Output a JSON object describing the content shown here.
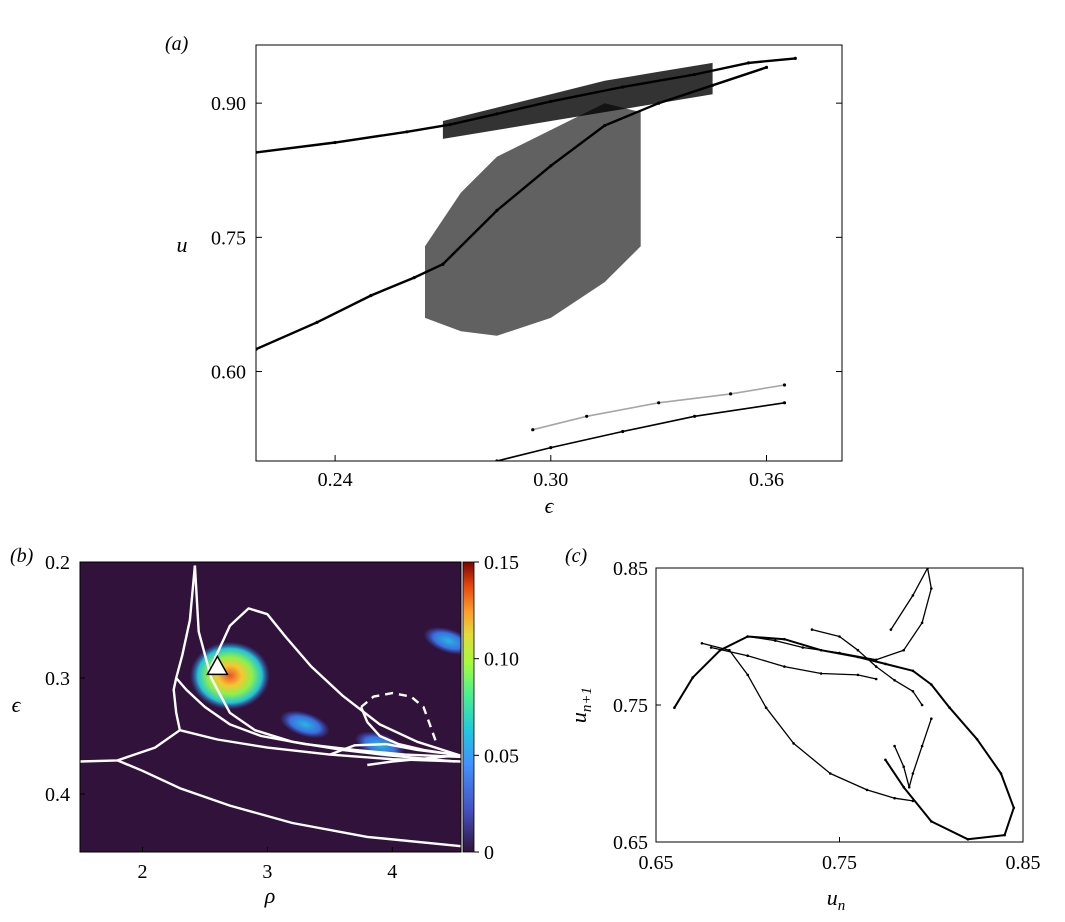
{
  "chart_data": [
    {
      "panel_label": "(a)",
      "type": "scatter",
      "xlabel": "ϵ",
      "ylabel": "u",
      "xlim": [
        0.218,
        0.381
      ],
      "ylim": [
        0.5,
        0.965
      ],
      "xticks": [
        0.24,
        0.3,
        0.36
      ],
      "xtick_labels": [
        "0.24",
        "0.30",
        "0.36"
      ],
      "yticks": [
        0.6,
        0.75,
        0.9
      ],
      "ytick_labels": [
        "0.60",
        "0.75",
        "0.90"
      ],
      "grid": false,
      "colors": {
        "points": "#000000",
        "background": "#ffffff"
      },
      "series": [
        {
          "x": [
            0.218,
            0.24,
            0.26,
            0.272,
            0.285,
            0.3,
            0.32,
            0.34,
            0.355,
            0.368
          ],
          "y": [
            0.845,
            0.856,
            0.868,
            0.876,
            0.888,
            0.902,
            0.918,
            0.932,
            0.945,
            0.95
          ]
        },
        {
          "x": [
            0.218,
            0.235,
            0.25,
            0.262,
            0.27
          ],
          "y": [
            0.625,
            0.655,
            0.685,
            0.705,
            0.72
          ]
        },
        {
          "x": [
            0.27,
            0.285,
            0.3,
            0.315,
            0.33,
            0.345,
            0.36
          ],
          "y": [
            0.72,
            0.78,
            0.83,
            0.875,
            0.9,
            0.92,
            0.94
          ]
        },
        {
          "x": [
            0.285,
            0.3,
            0.32,
            0.34,
            0.365
          ],
          "y": [
            0.5,
            0.515,
            0.533,
            0.55,
            0.565
          ]
        },
        {
          "x": [
            0.295,
            0.31,
            0.33,
            0.35,
            0.365
          ],
          "y": [
            0.535,
            0.55,
            0.565,
            0.575,
            0.585
          ]
        }
      ],
      "bands": [
        {
          "x": [
            0.265,
            0.275,
            0.285,
            0.3,
            0.315,
            0.325
          ],
          "lower": [
            0.66,
            0.645,
            0.64,
            0.66,
            0.7,
            0.74
          ],
          "upper": [
            0.74,
            0.8,
            0.84,
            0.87,
            0.9,
            0.89
          ]
        },
        {
          "x": [
            0.27,
            0.285,
            0.3,
            0.315,
            0.33,
            0.345
          ],
          "lower": [
            0.86,
            0.87,
            0.88,
            0.89,
            0.9,
            0.91
          ],
          "upper": [
            0.88,
            0.895,
            0.91,
            0.925,
            0.935,
            0.945
          ]
        }
      ]
    },
    {
      "panel_label": "(b)",
      "type": "heatmap",
      "xlabel": "ρ",
      "ylabel": "ϵ",
      "xlim": [
        1.5,
        4.55
      ],
      "ylim": [
        0.45,
        0.2
      ],
      "xticks": [
        2,
        3,
        4
      ],
      "xtick_labels": [
        "2",
        "3",
        "4"
      ],
      "yticks": [
        0.2,
        0.3,
        0.4
      ],
      "ytick_labels": [
        "0.2",
        "0.3",
        "0.4"
      ],
      "colorbar": {
        "min": 0,
        "max": 0.15,
        "ticks": [
          0,
          0.05,
          0.1,
          0.15
        ],
        "tick_labels": [
          "0",
          "0.05",
          "0.10",
          "0.15"
        ],
        "colormap": "turbo"
      },
      "colors": {
        "background": "#30123b",
        "curves": "#ffffff"
      },
      "blobs": [
        {
          "x": 2.7,
          "y": 0.298,
          "value": 0.13
        },
        {
          "x": 3.3,
          "y": 0.34,
          "value": 0.06
        },
        {
          "x": 3.9,
          "y": 0.358,
          "value": 0.05
        },
        {
          "x": 4.45,
          "y": 0.268,
          "value": 0.04
        }
      ],
      "marker": {
        "shape": "triangle",
        "x": 2.6,
        "y": 0.29
      },
      "curves": [
        {
          "style": "solid",
          "x": [
            2.42,
            2.45,
            2.55,
            2.7,
            2.9,
            3.2,
            3.6,
            4.0,
            4.3,
            4.5
          ],
          "y": [
            0.203,
            0.26,
            0.3,
            0.33,
            0.345,
            0.355,
            0.362,
            0.367,
            0.37,
            0.372
          ]
        },
        {
          "style": "solid",
          "x": [
            2.42,
            2.38,
            2.32,
            2.27,
            2.25,
            2.27,
            2.3
          ],
          "y": [
            0.203,
            0.25,
            0.28,
            0.3,
            0.31,
            0.33,
            0.345
          ]
        },
        {
          "style": "solid",
          "x": [
            2.27,
            2.35,
            2.5,
            2.7,
            2.95,
            3.3,
            3.7,
            4.1,
            4.55
          ],
          "y": [
            0.3,
            0.31,
            0.325,
            0.34,
            0.35,
            0.357,
            0.362,
            0.366,
            0.368
          ]
        },
        {
          "style": "solid",
          "x": [
            2.55,
            2.7,
            2.85,
            3.0,
            3.15,
            3.35,
            3.6,
            3.9,
            4.2,
            4.55
          ],
          "y": [
            0.29,
            0.255,
            0.24,
            0.245,
            0.265,
            0.29,
            0.315,
            0.34,
            0.355,
            0.367
          ]
        },
        {
          "style": "solid",
          "x": [
            2.3,
            2.6,
            3.0,
            3.5,
            4.0,
            4.55
          ],
          "y": [
            0.345,
            0.353,
            0.36,
            0.366,
            0.37,
            0.372
          ]
        },
        {
          "style": "solid",
          "x": [
            1.5,
            1.8,
            2.1,
            2.3
          ],
          "y": [
            0.372,
            0.371,
            0.36,
            0.345
          ]
        },
        {
          "style": "solid",
          "x": [
            1.8,
            2.0,
            2.3,
            2.7,
            3.2,
            3.8,
            4.55
          ],
          "y": [
            0.371,
            0.38,
            0.395,
            0.41,
            0.425,
            0.437,
            0.445
          ]
        },
        {
          "style": "dashed",
          "x": [
            3.75,
            3.85,
            4.0,
            4.15,
            4.25,
            4.3,
            4.35
          ],
          "y": [
            0.325,
            0.316,
            0.313,
            0.316,
            0.325,
            0.34,
            0.355
          ]
        },
        {
          "style": "solid",
          "x": [
            3.75,
            3.8,
            3.9,
            4.05,
            4.25,
            4.55
          ],
          "y": [
            0.325,
            0.338,
            0.35,
            0.357,
            0.362,
            0.367
          ]
        },
        {
          "style": "solid",
          "x": [
            3.5,
            3.7,
            3.95,
            4.2,
            4.5
          ],
          "y": [
            0.366,
            0.358,
            0.357,
            0.362,
            0.366
          ]
        },
        {
          "style": "solid",
          "x": [
            3.8,
            4.0,
            4.2,
            4.5
          ],
          "y": [
            0.375,
            0.372,
            0.37,
            0.367
          ]
        }
      ]
    },
    {
      "panel_label": "(c)",
      "type": "scatter",
      "xlabel": "u_n",
      "xlabel_main": "u",
      "xlabel_sub": "n",
      "ylabel": "u_{n+1}",
      "ylabel_main": "u",
      "ylabel_sub": "n+1",
      "xlim": [
        0.65,
        0.85
      ],
      "ylim": [
        0.65,
        0.85
      ],
      "xticks": [
        0.65,
        0.75,
        0.85
      ],
      "xtick_labels": [
        "0.65",
        "0.75",
        "0.85"
      ],
      "yticks": [
        0.65,
        0.75,
        0.85
      ],
      "ytick_labels": [
        "0.65",
        "0.75",
        "0.85"
      ],
      "grid": false,
      "colors": {
        "points": "#000000"
      },
      "series": [
        {
          "x": [
            0.66,
            0.67,
            0.685,
            0.7,
            0.72,
            0.74,
            0.76,
            0.775,
            0.79,
            0.8,
            0.81,
            0.825,
            0.838,
            0.845,
            0.84,
            0.82,
            0.8,
            0.785,
            0.775
          ],
          "y": [
            0.748,
            0.77,
            0.79,
            0.8,
            0.798,
            0.79,
            0.785,
            0.78,
            0.775,
            0.765,
            0.748,
            0.725,
            0.7,
            0.675,
            0.655,
            0.652,
            0.665,
            0.69,
            0.71
          ]
        },
        {
          "x": [
            0.675,
            0.69,
            0.7,
            0.71,
            0.725,
            0.745,
            0.765,
            0.78,
            0.79
          ],
          "y": [
            0.795,
            0.79,
            0.772,
            0.748,
            0.722,
            0.7,
            0.688,
            0.682,
            0.68
          ]
        },
        {
          "x": [
            0.7,
            0.715,
            0.73,
            0.75,
            0.77,
            0.785,
            0.795,
            0.8,
            0.798,
            0.79,
            0.778
          ],
          "y": [
            0.8,
            0.797,
            0.792,
            0.788,
            0.783,
            0.79,
            0.81,
            0.835,
            0.85,
            0.83,
            0.805
          ]
        },
        {
          "x": [
            0.68,
            0.7,
            0.72,
            0.74,
            0.76,
            0.77
          ],
          "y": [
            0.792,
            0.786,
            0.778,
            0.773,
            0.772,
            0.769
          ]
        },
        {
          "x": [
            0.735,
            0.75,
            0.76,
            0.77,
            0.78,
            0.79,
            0.795
          ],
          "y": [
            0.805,
            0.8,
            0.79,
            0.778,
            0.768,
            0.76,
            0.75
          ]
        },
        {
          "x": [
            0.78,
            0.785,
            0.788,
            0.79,
            0.795,
            0.8
          ],
          "y": [
            0.72,
            0.705,
            0.69,
            0.7,
            0.72,
            0.74
          ]
        }
      ]
    }
  ]
}
